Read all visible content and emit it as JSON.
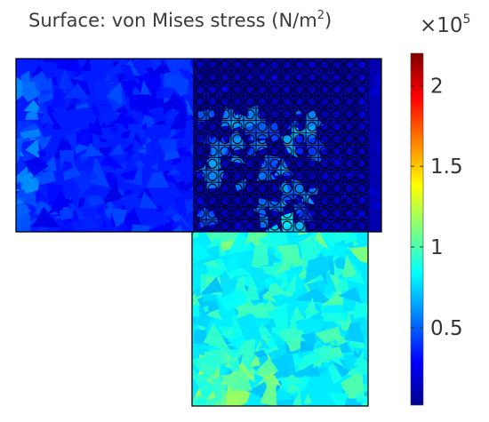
{
  "chart_data": {
    "type": "heatmap",
    "title_main": "Surface: von Mises stress (N/m",
    "title_sup": "2",
    "title_close": ")",
    "multiplier_base": "×10",
    "multiplier_exp": "5",
    "colorbar": {
      "range": [
        0.02,
        2.2
      ],
      "ticks": [
        0.5,
        1,
        1.5,
        2
      ],
      "tick_labels": [
        "0.5",
        "1",
        "1.5",
        "2"
      ],
      "colormap": [
        "#00008f",
        "#0000ff",
        "#007fff",
        "#00ffff",
        "#7fff7f",
        "#ffff00",
        "#ff7f00",
        "#ff0000",
        "#800000"
      ]
    },
    "regions": [
      {
        "name": "left arm",
        "typical_value": 0.35
      },
      {
        "name": "corner block with circular holes",
        "typical_value": 0.1
      },
      {
        "name": "lower arm",
        "typical_value": 0.85
      }
    ]
  }
}
